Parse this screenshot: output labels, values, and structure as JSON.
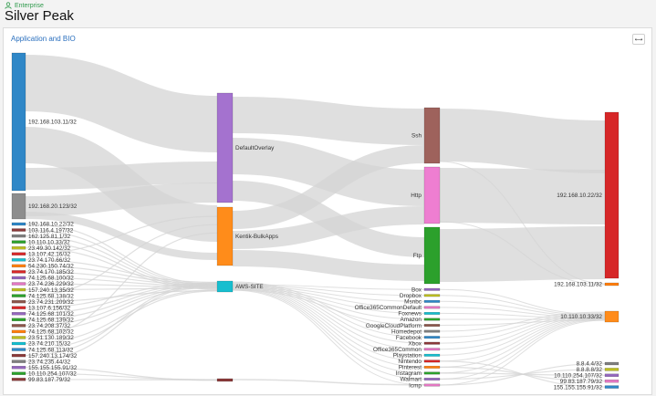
{
  "header": {
    "breadcrumb": "Enterprise",
    "title": "Silver Peak"
  },
  "panel": {
    "title": "Application and BIO",
    "expand_icon": "expand-icon"
  },
  "colors": {
    "link": "#d4d4d4",
    "accent": "#2a6fbe",
    "breadcrumb": "#2f9a4c"
  },
  "sankey": {
    "sources": [
      {
        "label": "192.168.103.11/32",
        "color": "#2f87c7",
        "size": 37
      },
      {
        "label": "192.168.20.123/32",
        "color": "#8d8d8d",
        "size": 7
      },
      {
        "label": "192.168.10.22/32",
        "color": "#2f87c7",
        "size": 1
      },
      {
        "label": "103.116.4.197/32",
        "color": "#8b3a3a",
        "size": 1
      },
      {
        "label": "162.125.81.1/32",
        "color": "#7f7f7f",
        "size": 1
      },
      {
        "label": "10.110.10.33/32",
        "color": "#2ca02c",
        "size": 1
      },
      {
        "label": "23.49.30.142/32",
        "color": "#bcbd22",
        "size": 1
      },
      {
        "label": "13.107.42.16/32",
        "color": "#d62728",
        "size": 1
      },
      {
        "label": "23.74.170.66/32",
        "color": "#17becf",
        "size": 1
      },
      {
        "label": "54.230.150.74/32",
        "color": "#ff7f0e",
        "size": 1
      },
      {
        "label": "23.74.170.185/32",
        "color": "#d62728",
        "size": 1
      },
      {
        "label": "74.125.68.100/32",
        "color": "#9467bd",
        "size": 1
      },
      {
        "label": "23.74.236.229/32",
        "color": "#e377c2",
        "size": 1
      },
      {
        "label": "157.240.13.35/32",
        "color": "#bcbd22",
        "size": 1
      },
      {
        "label": "74.125.68.138/32",
        "color": "#2ca02c",
        "size": 1
      },
      {
        "label": "23.74.231.209/32",
        "color": "#8c564b",
        "size": 1
      },
      {
        "label": "13.107.6.156/32",
        "color": "#d62728",
        "size": 1
      },
      {
        "label": "74.125.68.101/32",
        "color": "#9467bd",
        "size": 1
      },
      {
        "label": "74.125.68.139/32",
        "color": "#2ca02c",
        "size": 1
      },
      {
        "label": "23.74.208.37/32",
        "color": "#8c564b",
        "size": 1
      },
      {
        "label": "74.125.68.102/32",
        "color": "#ff7f0e",
        "size": 1
      },
      {
        "label": "23.51.130.189/32",
        "color": "#bcbd22",
        "size": 1
      },
      {
        "label": "23.74.210.15/32",
        "color": "#17becf",
        "size": 1
      },
      {
        "label": "74.125.68.113/32",
        "color": "#2f87c7",
        "size": 1
      },
      {
        "label": "157.240.13.174/32",
        "color": "#8b3a3a",
        "size": 1
      },
      {
        "label": "23.74.235.44/32",
        "color": "#7f7f7f",
        "size": 1
      },
      {
        "label": "155.155.155.91/32",
        "color": "#9467bd",
        "size": 1
      },
      {
        "label": "10.110.254.107/32",
        "color": "#2ca02c",
        "size": 1
      },
      {
        "label": "99.83.187.79/32",
        "color": "#8b3a3a",
        "size": 1
      }
    ],
    "tunnels": [
      {
        "label": "DefaultOverlay",
        "color": "#a472cf",
        "size": 22
      },
      {
        "label": "Kentik-BulkApps",
        "color": "#ff8c1a",
        "size": 11
      },
      {
        "label": "AWS-SITE",
        "color": "#17becf",
        "size": 2
      },
      {
        "label": "",
        "color": "#8b3a3a",
        "size": 0.5
      }
    ],
    "apps": [
      {
        "label": "Ssh",
        "color": "#9e625c",
        "size": 10
      },
      {
        "label": "Http",
        "color": "#ee7ed1",
        "size": 10
      },
      {
        "label": "Ftp",
        "color": "#2ca02c",
        "size": 10
      },
      {
        "label": "Box",
        "color": "#9467bd",
        "size": 0.5
      },
      {
        "label": "Dropbox",
        "color": "#bcbd22",
        "size": 0.5
      },
      {
        "label": "Msnbc",
        "color": "#2f87c7",
        "size": 0.5
      },
      {
        "label": "Office365CommonDefault",
        "color": "#e377c2",
        "size": 0.5
      },
      {
        "label": "Foxnews",
        "color": "#17becf",
        "size": 0.5
      },
      {
        "label": "Amazon",
        "color": "#2ca02c",
        "size": 0.5
      },
      {
        "label": "GoogleCloudPlatform",
        "color": "#8c564b",
        "size": 0.5
      },
      {
        "label": "Homedepot",
        "color": "#7f7f7f",
        "size": 0.5
      },
      {
        "label": "Facebook",
        "color": "#2f87c7",
        "size": 0.5
      },
      {
        "label": "Xbox",
        "color": "#8b3a3a",
        "size": 0.5
      },
      {
        "label": "Office365Common",
        "color": "#e377c2",
        "size": 0.5
      },
      {
        "label": "Playstation",
        "color": "#17becf",
        "size": 0.5
      },
      {
        "label": "Nintendo",
        "color": "#d62728",
        "size": 0.5
      },
      {
        "label": "Pinterest",
        "color": "#ff7f0e",
        "size": 0.5
      },
      {
        "label": "Instagram",
        "color": "#2ca02c",
        "size": 0.5
      },
      {
        "label": "Walmart",
        "color": "#9467bd",
        "size": 0.5
      },
      {
        "label": "Icmp",
        "color": "#e377c2",
        "size": 0.5
      }
    ],
    "destinations": [
      {
        "label": "192.168.10.22/32",
        "color": "#d62728",
        "size": 28
      },
      {
        "label": "192.168.103.11/32",
        "color": "#ff7f0e",
        "size": 0.5
      },
      {
        "label": "10.110.10.33/32",
        "color": "#ff8c1a",
        "size": 2
      },
      {
        "label": "8.8.4.4/32",
        "color": "#7f7f7f",
        "size": 0.5
      },
      {
        "label": "8.8.8.8/32",
        "color": "#bcbd22",
        "size": 0.5
      },
      {
        "label": "10.110.254.107/32",
        "color": "#9467bd",
        "size": 0.5
      },
      {
        "label": "99.83.187.79/32",
        "color": "#e377c2",
        "size": 0.5
      },
      {
        "label": "155.155.155.91/32",
        "color": "#2f87c7",
        "size": 0.5
      }
    ]
  }
}
